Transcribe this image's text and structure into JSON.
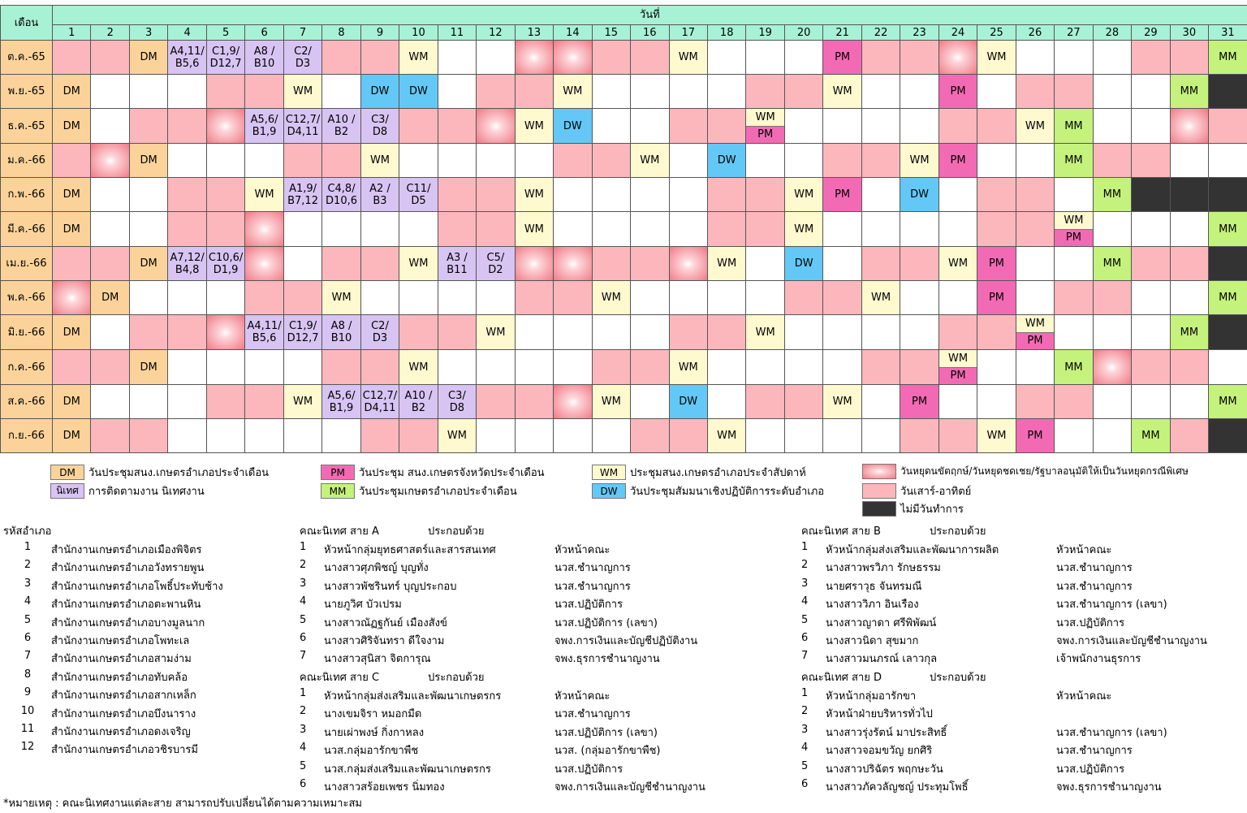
{
  "header": {
    "month_col": "เดือน",
    "day_title": "วันที่",
    "days": [
      "1",
      "2",
      "3",
      "4",
      "5",
      "6",
      "7",
      "8",
      "9",
      "10",
      "11",
      "12",
      "13",
      "14",
      "15",
      "16",
      "17",
      "18",
      "19",
      "20",
      "21",
      "22",
      "23",
      "24",
      "25",
      "26",
      "27",
      "28",
      "29",
      "30",
      "31"
    ]
  },
  "codes": {
    "n": "ordinary day",
    "w": "weekend (pink)",
    "h": "special holiday (starburst)",
    "x": "no working day (dark)"
  },
  "colors": {
    "header": "#a7f2d5",
    "DM": "#fbd39a",
    "WM": "#fff9cf",
    "PM": "#f36ab4",
    "MM": "#c4f27c",
    "DW": "#63c8f5",
    "NT": "#d8c4f2",
    "weekend": "#fbb7bc",
    "holiday": "#f07a86",
    "none": "#333333"
  },
  "months": [
    {
      "label": "ต.ค.-65",
      "bg": [
        "w",
        "w",
        "n",
        "n",
        "n",
        "n",
        "n",
        "w",
        "w",
        "n",
        "n",
        "n",
        "h",
        "h",
        "w",
        "w",
        "n",
        "n",
        "n",
        "n",
        "n",
        "w",
        "w",
        "h",
        "n",
        "n",
        "n",
        "n",
        "w",
        "w",
        "n"
      ],
      "events": {
        "3": "DM",
        "4": "A4,11/\nB5,6",
        "5": "C1,9/\nD12,7",
        "6": "A8 /\nB10",
        "7": "C2/\nD3",
        "10": "WM",
        "17": "WM",
        "21": "PM",
        "25": "WM",
        "31": "MM"
      }
    },
    {
      "label": "พ.ย.-65",
      "bg": [
        "n",
        "n",
        "n",
        "n",
        "w",
        "w",
        "n",
        "n",
        "n",
        "n",
        "n",
        "w",
        "w",
        "n",
        "n",
        "n",
        "n",
        "n",
        "w",
        "w",
        "n",
        "n",
        "n",
        "n",
        "n",
        "w",
        "w",
        "n",
        "n",
        "n",
        "x"
      ],
      "events": {
        "1": "DM",
        "7": "WM",
        "9": "DW",
        "10": "DW",
        "14": "WM",
        "21": "WM",
        "24": "PM",
        "30": "MM"
      }
    },
    {
      "label": "ธ.ค.-65",
      "bg": [
        "n",
        "n",
        "w",
        "w",
        "h",
        "n",
        "n",
        "n",
        "n",
        "w",
        "w",
        "h",
        "n",
        "n",
        "n",
        "n",
        "w",
        "w",
        "n",
        "n",
        "n",
        "n",
        "n",
        "w",
        "w",
        "n",
        "n",
        "n",
        "n",
        "h",
        "w"
      ],
      "events": {
        "1": "DM",
        "6": "A5,6/\nB1,9",
        "7": "C12,7/\nD4,11",
        "8": "A10 /\nB2",
        "9": "C3/\nD8",
        "13": "WM",
        "14": "DW",
        "19": "WM|PM",
        "26": "WM",
        "27": "MM"
      }
    },
    {
      "label": "ม.ค.-66",
      "bg": [
        "w",
        "h",
        "n",
        "n",
        "n",
        "n",
        "w",
        "w",
        "n",
        "n",
        "n",
        "n",
        "n",
        "w",
        "w",
        "n",
        "n",
        "n",
        "n",
        "n",
        "w",
        "w",
        "n",
        "n",
        "n",
        "n",
        "n",
        "w",
        "w",
        "n",
        "n"
      ],
      "events": {
        "3": "DM",
        "9": "WM",
        "16": "WM",
        "18": "DW",
        "23": "WM",
        "24": "PM",
        "27": "MM"
      }
    },
    {
      "label": "ก.พ.-66",
      "bg": [
        "n",
        "n",
        "n",
        "w",
        "w",
        "n",
        "n",
        "n",
        "n",
        "n",
        "w",
        "w",
        "n",
        "n",
        "n",
        "n",
        "n",
        "w",
        "w",
        "n",
        "n",
        "n",
        "n",
        "n",
        "w",
        "w",
        "n",
        "n",
        "x",
        "x",
        "x"
      ],
      "events": {
        "1": "DM",
        "6": "WM",
        "7": "A1,9/\nB7,12",
        "8": "C4,8/\nD10,6",
        "9": "A2 /\nB3",
        "10": "C11/\nD5",
        "13": "WM",
        "20": "WM",
        "21": "PM",
        "23": "DW",
        "28": "MM"
      }
    },
    {
      "label": "มี.ค.-66",
      "bg": [
        "n",
        "n",
        "n",
        "w",
        "w",
        "h",
        "n",
        "n",
        "n",
        "n",
        "w",
        "w",
        "n",
        "n",
        "n",
        "n",
        "n",
        "w",
        "w",
        "n",
        "n",
        "n",
        "n",
        "n",
        "w",
        "w",
        "n",
        "n",
        "n",
        "n",
        "n"
      ],
      "events": {
        "1": "DM",
        "13": "WM",
        "20": "WM",
        "27": "WM|PM",
        "31": "MM"
      }
    },
    {
      "label": "เม.ย.-66",
      "bg": [
        "w",
        "w",
        "n",
        "n",
        "n",
        "h",
        "n",
        "w",
        "w",
        "n",
        "n",
        "n",
        "h",
        "h",
        "w",
        "w",
        "h",
        "n",
        "n",
        "n",
        "n",
        "w",
        "w",
        "n",
        "n",
        "n",
        "n",
        "n",
        "w",
        "w",
        "x"
      ],
      "events": {
        "3": "DM",
        "4": "A7,12/\nB4,8",
        "5": "C10,6/\nD1,9",
        "10": "WM",
        "11": "A3 /\nB11",
        "12": "C5/\nD2",
        "18": "WM",
        "20": "DW",
        "24": "WM",
        "25": "PM",
        "28": "MM"
      }
    },
    {
      "label": "พ.ค.-66",
      "bg": [
        "h",
        "n",
        "n",
        "n",
        "n",
        "w",
        "w",
        "n",
        "n",
        "n",
        "n",
        "n",
        "w",
        "w",
        "n",
        "n",
        "n",
        "n",
        "n",
        "w",
        "w",
        "n",
        "n",
        "n",
        "n",
        "n",
        "w",
        "w",
        "n",
        "n",
        "n"
      ],
      "events": {
        "2": "DM",
        "8": "WM",
        "15": "WM",
        "22": "WM",
        "25": "PM",
        "31": "MM"
      }
    },
    {
      "label": "มิ.ย.-66",
      "bg": [
        "n",
        "n",
        "w",
        "w",
        "h",
        "n",
        "n",
        "n",
        "n",
        "w",
        "w",
        "n",
        "n",
        "n",
        "n",
        "n",
        "w",
        "w",
        "n",
        "n",
        "n",
        "n",
        "n",
        "w",
        "w",
        "n",
        "n",
        "n",
        "n",
        "n",
        "x"
      ],
      "events": {
        "1": "DM",
        "6": "A4,11/\nB5,6",
        "7": "C1,9/\nD12,7",
        "8": "A8 /\nB10",
        "9": "C2/\nD3",
        "12": "WM",
        "19": "WM",
        "26": "WM|PM",
        "30": "MM"
      }
    },
    {
      "label": "ก.ค.-66",
      "bg": [
        "w",
        "w",
        "n",
        "n",
        "n",
        "n",
        "n",
        "w",
        "w",
        "n",
        "n",
        "n",
        "n",
        "n",
        "w",
        "w",
        "n",
        "n",
        "n",
        "n",
        "n",
        "w",
        "w",
        "n",
        "n",
        "n",
        "n",
        "h",
        "w",
        "w",
        "n"
      ],
      "events": {
        "3": "DM",
        "10": "WM",
        "17": "WM",
        "24": "WM|PM",
        "27": "MM"
      }
    },
    {
      "label": "ส.ค.-66",
      "bg": [
        "n",
        "n",
        "n",
        "n",
        "w",
        "w",
        "n",
        "n",
        "n",
        "n",
        "n",
        "w",
        "w",
        "h",
        "n",
        "n",
        "n",
        "n",
        "w",
        "w",
        "n",
        "n",
        "n",
        "n",
        "n",
        "w",
        "w",
        "n",
        "n",
        "n",
        "n"
      ],
      "events": {
        "1": "DM",
        "7": "WM",
        "8": "A5,6/\nB1,9",
        "9": "C12,7/\nD4,11",
        "10": "A10 /\nB2",
        "11": "C3/\nD8",
        "15": "WM",
        "17": "DW",
        "21": "WM",
        "23": "PM",
        "31": "MM"
      }
    },
    {
      "label": "ก.ย.-66",
      "bg": [
        "n",
        "w",
        "w",
        "n",
        "n",
        "n",
        "n",
        "n",
        "w",
        "w",
        "n",
        "n",
        "n",
        "n",
        "n",
        "w",
        "w",
        "n",
        "n",
        "n",
        "n",
        "n",
        "w",
        "w",
        "n",
        "n",
        "n",
        "n",
        "n",
        "w",
        "x"
      ],
      "events": {
        "1": "DM",
        "11": "WM",
        "18": "WM",
        "25": "WM",
        "26": "PM",
        "29": "MM"
      }
    }
  ],
  "legend": {
    "dm_code": "DM",
    "dm_text": "วันประชุมสนง.เกษตรอำเภอประจำเดือน",
    "nt_code": "นิเทศ",
    "nt_text": "การติดตามงาน นิเทศงาน",
    "pm_code": "PM",
    "pm_text": "วันประชุม สนง.เกษตรจังหวัดประจำเดือน",
    "mm_code": "MM",
    "mm_text": "วันประชุมเกษตรอำเภอประจำเดือน",
    "wm_code": "WM",
    "wm_text": "ประชุมสนง.เกษตรอำเภอประจำสัปดาห์",
    "dw_code": "DW",
    "dw_text": "วันประชุมสัมมนาเชิงปฏิบัติการระดับอำเภอ",
    "h_text": "วันหยุดนขัตฤกษ์/วันหยุดชดเชย/รัฐบาลอนุมัติให้เป็นวันหยุดกรณีพิเศษ",
    "w_text": "วันเสาร์-อาทิตย์",
    "x_text": "ไม่มีวันทำการ"
  },
  "districts": {
    "title": "รหัสอำเภอ",
    "items": [
      {
        "n": "1",
        "name": "สำนักงานเกษตรอำเภอเมืองพิจิตร"
      },
      {
        "n": "2",
        "name": "สำนักงานเกษตรอำเภอวังทรายพูน"
      },
      {
        "n": "3",
        "name": "สำนักงานเกษตรอำเภอโพธิ์ประทับช้าง"
      },
      {
        "n": "4",
        "name": "สำนักงานเกษตรอำเภอตะพานหิน"
      },
      {
        "n": "5",
        "name": "สำนักงานเกษตรอำเภอบางมูลนาก"
      },
      {
        "n": "6",
        "name": "สำนักงานเกษตรอำเภอโพทะเล"
      },
      {
        "n": "7",
        "name": "สำนักงานเกษตรอำเภอสามง่าม"
      },
      {
        "n": "8",
        "name": "สำนักงานเกษตรอำเภอทับคล้อ"
      },
      {
        "n": "9",
        "name": "สำนักงานเกษตรอำเภอสากเหล็ก"
      },
      {
        "n": "10",
        "name": "สำนักงานเกษตรอำเภอบึงนาราง"
      },
      {
        "n": "11",
        "name": "สำนักงานเกษตรอำเภอดงเจริญ"
      },
      {
        "n": "12",
        "name": "สำนักงานเกษตรอำเภอวชิรบารมี"
      }
    ]
  },
  "team_a": {
    "title": "คณะนิเทศ สาย A",
    "sub": "ประกอบด้วย",
    "members": [
      {
        "n": "1",
        "name": "หัวหน้ากลุ่มยุทธศาสตร์และสารสนเทศ",
        "role": "หัวหน้าคณะ"
      },
      {
        "n": "2",
        "name": "นางสาวศุภพิชญ์ บุญทั่ง",
        "role": "นวส.ชำนาญการ"
      },
      {
        "n": "3",
        "name": "นางสาวพัชรินทร์ บุญประกอบ",
        "role": "นวส.ชำนาญการ"
      },
      {
        "n": "4",
        "name": "นายภูวิศ บัวเปรม",
        "role": "นวส.ปฏิบัติการ"
      },
      {
        "n": "5",
        "name": "นางสาวณัฏฐกันย์ เมืองสังข์",
        "role": "นวส.ปฏิบัติการ (เลขา)"
      },
      {
        "n": "6",
        "name": "นางสาวศิริจันทรา ดีใจงาม",
        "role": "จพง.การเงินและบัญชีปฏิบัติงาน"
      },
      {
        "n": "7",
        "name": "นางสาวสุนิสา  จิตการุณ",
        "role": "จพง.ธุรการชำนาญงาน"
      }
    ]
  },
  "team_c": {
    "title": "คณะนิเทศ สาย C",
    "sub": "ประกอบด้วย",
    "members": [
      {
        "n": "1",
        "name": "หัวหน้ากลุ่มส่งเสริมและพัฒนาเกษตรกร",
        "role": "หัวหน้าคณะ"
      },
      {
        "n": "2",
        "name": "นางเขมจิรา หมอกมืด",
        "role": "นวส.ชำนาญการ"
      },
      {
        "n": "3",
        "name": "นายเผ่าพงษ์ กิ่งกาหลง",
        "role": "นวส.ปฏิบัติการ (เลขา)"
      },
      {
        "n": "4",
        "name": "นวส.กลุ่มอารักขาพืช",
        "role": "นวส. (กลุ่มอารักขาพืช)"
      },
      {
        "n": "5",
        "name": "นวส.กลุ่มส่งเสริมและพัฒนาเกษตรกร",
        "role": "นวส.ปฏิบัติการ"
      },
      {
        "n": "6",
        "name": "นางสาวสร้อยเพชร นิ่มทอง",
        "role": "จพง.การเงินและบัญชีชำนาญงาน"
      }
    ]
  },
  "team_b": {
    "title": "คณะนิเทศ สาย B",
    "sub": "ประกอบด้วย",
    "members": [
      {
        "n": "1",
        "name": "หัวหน้ากลุ่มส่งเสริมและพัฒนาการผลิต",
        "role": "หัวหน้าคณะ"
      },
      {
        "n": "2",
        "name": "นางสาวพรวิภา รักษธรรม",
        "role": "นวส.ชำนาญการ"
      },
      {
        "n": "3",
        "name": "นายศราวุธ จันทรมณี",
        "role": "นวส.ชำนาญการ"
      },
      {
        "n": "4",
        "name": "นางสาววิภา อินเรือง",
        "role": "นวส.ชำนาญการ (เลขา)"
      },
      {
        "n": "5",
        "name": "นางสาวญาดา ศรีพิพัฒน์",
        "role": "นวส.ปฏิบัติการ"
      },
      {
        "n": "6",
        "name": "นางสาวนิดา สุขมาก",
        "role": "จพง.การเงินและบัญชีชำนาญงาน"
      },
      {
        "n": "7",
        "name": "นางสาวมนภรณ์ เลาวกุล",
        "role": "เจ้าพนักงานธุรการ"
      }
    ]
  },
  "team_d": {
    "title": "คณะนิเทศ สาย D",
    "sub": "ประกอบด้วย",
    "members": [
      {
        "n": "1",
        "name": "หัวหน้ากลุ่มอารักขา",
        "role": "หัวหน้าคณะ"
      },
      {
        "n": "2",
        "name": "หัวหน้าฝ่ายบริหารทั่วไป",
        "role": ""
      },
      {
        "n": "3",
        "name": "นางสาวรุ่งรัตน์  มาประสิทธิ์",
        "role": "นวส.ชำนาญการ (เลขา)"
      },
      {
        "n": "4",
        "name": "นางสาวจอมขวัญ ยกศิริ",
        "role": "นวส.ชำนาญการ"
      },
      {
        "n": "5",
        "name": "นางสาวปริฉัตร พฤกษะวัน",
        "role": "นวส.ปฏิบัติการ"
      },
      {
        "n": "6",
        "name": "นางสาวภัควลัญชญ์ ประทุมโพธิ์",
        "role": "จพง.ธุรการชำนาญงาน"
      }
    ]
  },
  "note": "*หมายเหตุ : คณะนิเทศงานแต่ละสาย สามารถปรับเปลี่ยนได้ตามความเหมาะสม"
}
